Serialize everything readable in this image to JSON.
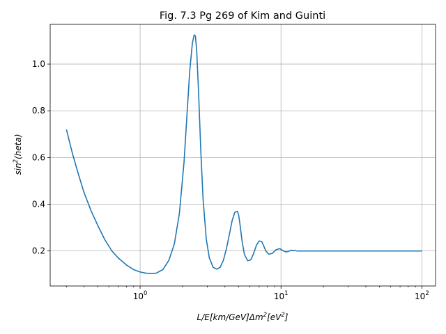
{
  "chart_data": {
    "type": "line",
    "title": "Fig. 7.3 Pg 269 of Kim and Guinti",
    "xlabel": "L/E[km/GeV]Δm²[eV²]",
    "ylabel": "sin²(heta)",
    "xscale": "log",
    "xlim": [
      0.23,
      125
    ],
    "ylim": [
      0.05,
      1.17
    ],
    "grid": true,
    "x_ticks": [
      {
        "value": 1,
        "base": "10",
        "exp": "0"
      },
      {
        "value": 10,
        "base": "10",
        "exp": "1"
      },
      {
        "value": 100,
        "base": "10",
        "exp": "2"
      }
    ],
    "y_ticks": [
      {
        "value": 0.2,
        "label": "0.2"
      },
      {
        "value": 0.4,
        "label": "0.4"
      },
      {
        "value": 0.6,
        "label": "0.6"
      },
      {
        "value": 0.8,
        "label": "0.8"
      },
      {
        "value": 1.0,
        "label": "1.0"
      }
    ],
    "series": [
      {
        "color": "#1f77b4",
        "x": [
          0.3,
          0.33,
          0.36,
          0.4,
          0.45,
          0.5,
          0.56,
          0.63,
          0.7,
          0.8,
          0.9,
          1.0,
          1.1,
          1.2,
          1.3,
          1.45,
          1.6,
          1.75,
          1.9,
          2.05,
          2.15,
          2.25,
          2.35,
          2.42,
          2.47,
          2.52,
          2.6,
          2.7,
          2.8,
          2.95,
          3.1,
          3.3,
          3.5,
          3.7,
          3.9,
          4.1,
          4.3,
          4.5,
          4.7,
          4.9,
          5.0,
          5.1,
          5.3,
          5.5,
          5.8,
          6.1,
          6.4,
          6.7,
          7.0,
          7.3,
          7.5,
          7.8,
          8.2,
          8.7,
          9.2,
          9.8,
          10.3,
          10.8,
          11.3,
          11.8,
          12.3,
          13,
          14,
          16,
          20,
          30,
          50,
          100
        ],
        "y": [
          0.72,
          0.62,
          0.54,
          0.45,
          0.37,
          0.31,
          0.25,
          0.2,
          0.17,
          0.14,
          0.12,
          0.11,
          0.105,
          0.103,
          0.105,
          0.12,
          0.16,
          0.23,
          0.36,
          0.58,
          0.78,
          0.97,
          1.09,
          1.125,
          1.12,
          1.06,
          0.88,
          0.62,
          0.42,
          0.25,
          0.17,
          0.13,
          0.122,
          0.13,
          0.16,
          0.21,
          0.27,
          0.33,
          0.365,
          0.37,
          0.355,
          0.32,
          0.24,
          0.185,
          0.158,
          0.162,
          0.19,
          0.225,
          0.243,
          0.24,
          0.225,
          0.2,
          0.186,
          0.19,
          0.205,
          0.21,
          0.202,
          0.196,
          0.198,
          0.203,
          0.202,
          0.2,
          0.2,
          0.2,
          0.2,
          0.2,
          0.2,
          0.2
        ]
      }
    ]
  }
}
